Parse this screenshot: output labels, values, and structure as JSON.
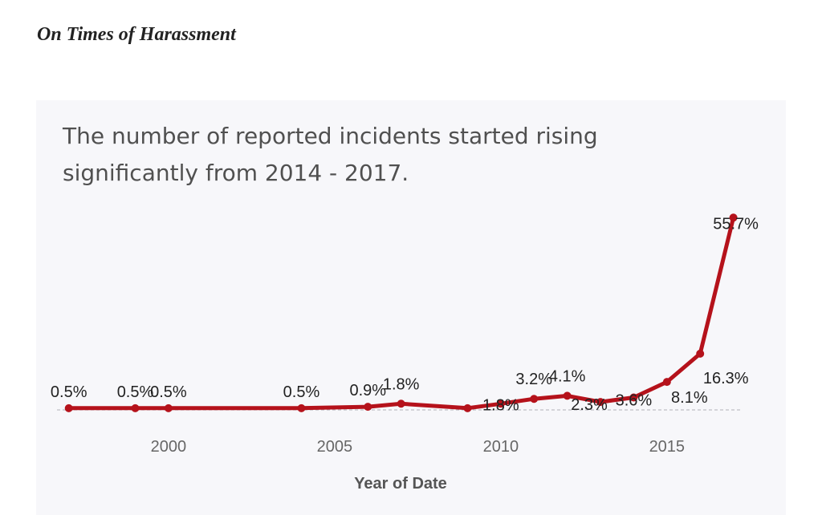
{
  "page": {
    "section_title": "On Times of Harassment"
  },
  "chart_data": {
    "type": "line",
    "title": "The number of reported incidents started rising significantly from 2014 - 2017.",
    "xlabel": "Year of Date",
    "ylabel": "",
    "xlim": [
      1996.5,
      2018.0
    ],
    "ylim": [
      0,
      56
    ],
    "x_ticks": [
      2000,
      2005,
      2010,
      2015
    ],
    "grid": false,
    "reference_line": "dashed baseline at 0",
    "color": "#b5121b",
    "series": [
      {
        "points": [
          {
            "x": 1997,
            "y": 0.5,
            "label": "0.5%"
          },
          {
            "x": 1999,
            "y": 0.5,
            "label": "0.5%"
          },
          {
            "x": 2000,
            "y": 0.5,
            "label": "0.5%"
          },
          {
            "x": 2004,
            "y": 0.5,
            "label": "0.5%"
          },
          {
            "x": 2006,
            "y": 0.9,
            "label": "0.9%"
          },
          {
            "x": 2007,
            "y": 1.8,
            "label": "1.8%"
          },
          {
            "x": 2009,
            "y": 0.5,
            "label": ""
          },
          {
            "x": 2010,
            "y": 1.8,
            "label": "1.8%"
          },
          {
            "x": 2011,
            "y": 3.2,
            "label": "3.2%"
          },
          {
            "x": 2012,
            "y": 4.1,
            "label": "4.1%"
          },
          {
            "x": 2013,
            "y": 2.3,
            "label": "2.3%"
          },
          {
            "x": 2014,
            "y": 3.6,
            "label": "3.6%"
          },
          {
            "x": 2015,
            "y": 8.1,
            "label": "8.1%"
          },
          {
            "x": 2016,
            "y": 16.3,
            "label": "16.3%"
          },
          {
            "x": 2017,
            "y": 55.7,
            "label": "55.7%"
          }
        ]
      }
    ]
  }
}
